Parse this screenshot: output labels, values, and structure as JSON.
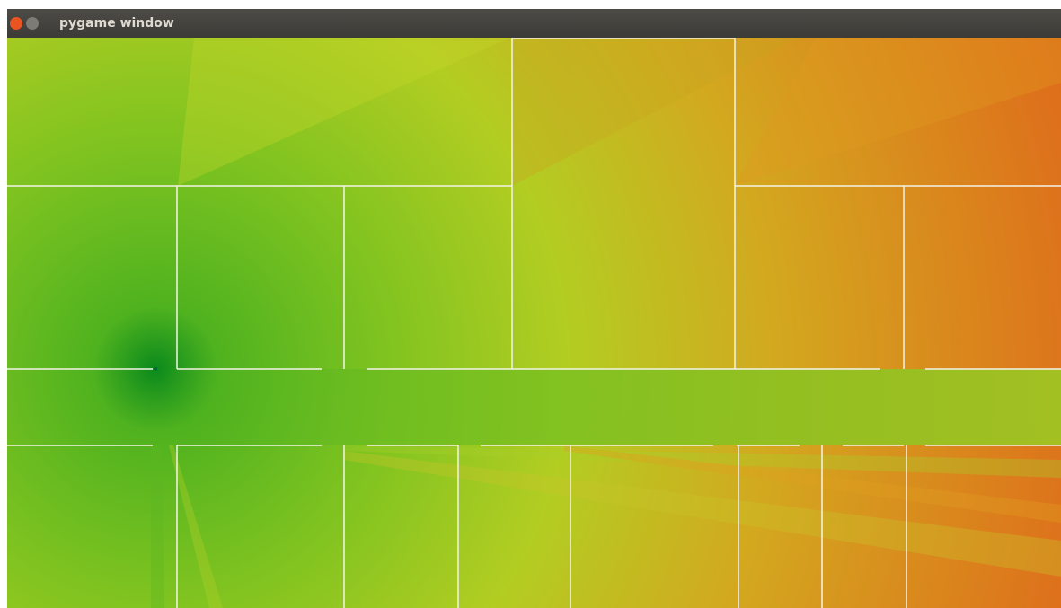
{
  "window": {
    "title": "pygame window"
  }
}
